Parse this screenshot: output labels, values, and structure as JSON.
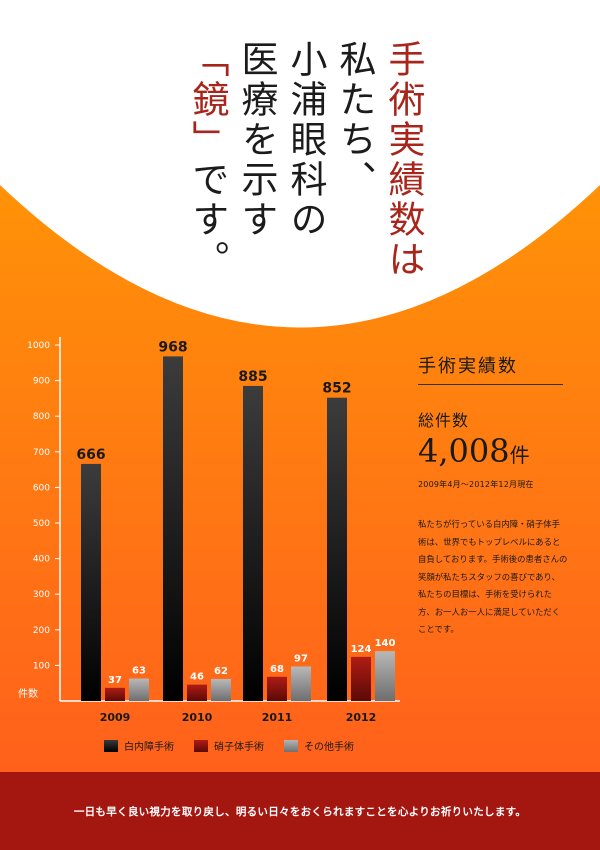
{
  "headline": {
    "line1": "手術実績数は",
    "line2": "私たち、",
    "line3": "小浦眼科の",
    "line4": "医療を示す",
    "line5_bracket_open": "「",
    "line5_red": "鏡",
    "line5_bracket_close": "」",
    "line5_rest": "です。"
  },
  "info": {
    "title": "手術実績数",
    "total_label": "総件数",
    "total_value": "4,008",
    "total_unit": "件",
    "period": "2009年4月～2012年12月現在",
    "description": "私たちが行っている白内障・硝子体手術は、世界でもトップレベルにあると自負しております。手術後の患者さんの笑顔が私たちスタッフの喜びであり、私たちの目標は、手術を受けられた方、お一人お一人に満足していただくことです。"
  },
  "chart_data": {
    "type": "bar",
    "categories": [
      "2009",
      "2010",
      "2011",
      "2012"
    ],
    "series": [
      {
        "name": "白内障手術",
        "values": [
          666,
          968,
          885,
          852
        ],
        "color": "#1a1a1a"
      },
      {
        "name": "硝子体手術",
        "values": [
          37,
          46,
          68,
          124
        ],
        "color": "#8a1410"
      },
      {
        "name": "その他手術",
        "values": [
          63,
          62,
          97,
          140
        ],
        "color": "#8e8e8e"
      }
    ],
    "ylabel": "件数",
    "ylim": [
      0,
      1000
    ],
    "yticks": [
      100,
      200,
      300,
      400,
      500,
      600,
      700,
      800,
      900,
      1000
    ],
    "grid": false,
    "legend_position": "bottom"
  },
  "colors": {
    "accent_red": "#a8251c",
    "footer_red": "#a41610",
    "orange_top": "#ffa200",
    "orange_bottom": "#ff5a1e"
  },
  "footer": {
    "text": "一日も早く良い視力を取り戻し、明るい日々をおくられますことを心よりお祈りいたします。"
  }
}
